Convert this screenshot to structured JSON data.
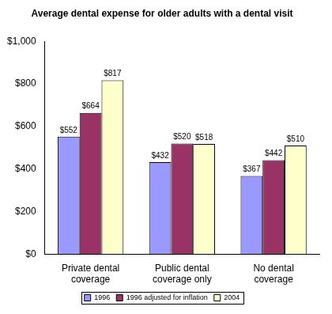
{
  "chart_data": {
    "type": "bar",
    "title": "Average dental expense for older adults with a dental visit",
    "categories": [
      "Private dental coverage",
      "Public dental coverage only",
      "No dental coverage"
    ],
    "series": [
      {
        "name": "1996",
        "color": "#9999ff",
        "values": [
          552,
          432,
          367
        ],
        "value_labels": [
          "$552",
          "$432",
          "$367"
        ]
      },
      {
        "name": "1996 adjusted for inflation",
        "color": "#993366",
        "values": [
          664,
          520,
          442
        ],
        "value_labels": [
          "$664",
          "$520",
          "$442"
        ]
      },
      {
        "name": "2004",
        "color": "#ffffcc",
        "values": [
          817,
          518,
          510
        ],
        "value_labels": [
          "$817",
          "$518",
          "$510"
        ]
      }
    ],
    "ylim": [
      0,
      1000
    ],
    "yticks": [
      {
        "value": 0,
        "label": "$0"
      },
      {
        "value": 200,
        "label": "$200"
      },
      {
        "value": 400,
        "label": "$400"
      },
      {
        "value": 600,
        "label": "$600"
      },
      {
        "value": 800,
        "label": "$800"
      },
      {
        "value": 1000,
        "label": "$1,000"
      }
    ],
    "grid": false,
    "legend": "bottom",
    "data_labels": true
  }
}
